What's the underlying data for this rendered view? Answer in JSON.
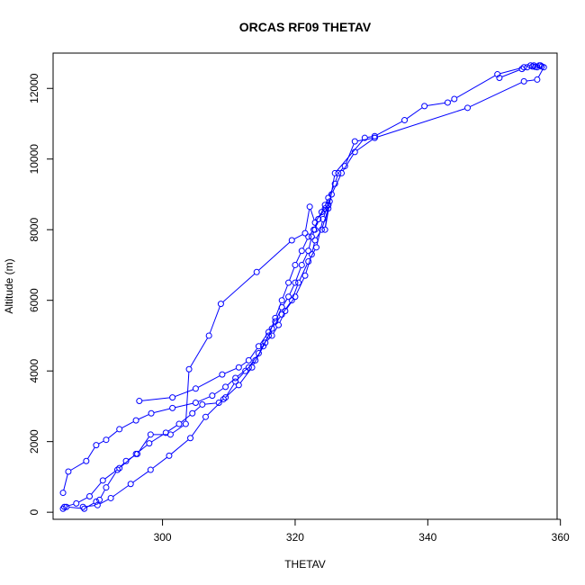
{
  "chart_data": {
    "type": "line",
    "title": "ORCAS RF09 THETAV",
    "xlabel": "THETAV",
    "ylabel": "Altitude (m)",
    "xlim": [
      283.5,
      359.5
    ],
    "ylim": [
      -200,
      13000
    ],
    "xticks": [
      300,
      320,
      340,
      360
    ],
    "yticks": [
      0,
      2000,
      4000,
      6000,
      8000,
      10000,
      12000
    ],
    "xtick_labels": [
      "300",
      "320",
      "340",
      "360"
    ],
    "ytick_labels": [
      "0",
      "2000",
      "4000",
      "6000",
      "8000",
      "10000",
      "12000"
    ],
    "grid": false,
    "series_color": "#0000ff",
    "marker": "open-circle",
    "series": [
      {
        "x": [
          285.0,
          285.8,
          288.5,
          290.0,
          291.5,
          293.5,
          296.0,
          298.3,
          301.5,
          305.0,
          307.5,
          309.5,
          311.0,
          313.0,
          314.5,
          316.0,
          317.0,
          318.0,
          319.0,
          320.0,
          321.0,
          322.0,
          322.8,
          323.5,
          324.5,
          325.0,
          325.2
        ],
        "y": [
          550,
          1150,
          1450,
          1900,
          2050,
          2350,
          2600,
          2800,
          2950,
          3100,
          3300,
          3550,
          3800,
          4100,
          4500,
          5000,
          5500,
          6000,
          6500,
          7000,
          7400,
          7800,
          8000,
          8300,
          8600,
          8700,
          8800
        ]
      },
      {
        "x": [
          296.5,
          301.5,
          305.0,
          309.0,
          311.5,
          313.0,
          314.5,
          316.0,
          317.0,
          318.0,
          319.0,
          320.0,
          321.0,
          322.0,
          322.5,
          323.0,
          323.5,
          324.5,
          325.0,
          326.0,
          326.5,
          327.5,
          329.0,
          332.0
        ],
        "y": [
          3150,
          3250,
          3500,
          3900,
          4100,
          4300,
          4700,
          5100,
          5400,
          5800,
          6100,
          6500,
          7000,
          7400,
          7800,
          8000,
          8300,
          8700,
          8900,
          9300,
          9600,
          9800,
          10500,
          10600
        ]
      },
      {
        "x": [
          285.2,
          287.0,
          289.0,
          291.0,
          293.5,
          296.0,
          298.0,
          300.5,
          302.5,
          304.5,
          306.0,
          308.5,
          309.5,
          311.0,
          312.5,
          314.0,
          315.5,
          316.5,
          317.5,
          318.5,
          320.0,
          321.5,
          322.5,
          323.0,
          324.0,
          325.0
        ],
        "y": [
          150,
          250,
          450,
          900,
          1250,
          1650,
          1950,
          2250,
          2500,
          2800,
          3050,
          3100,
          3250,
          3700,
          4000,
          4300,
          4800,
          5000,
          5300,
          5700,
          6100,
          6700,
          7300,
          7700,
          8000,
          8600
        ]
      },
      {
        "x": [
          285.0,
          285.5,
          288.2,
          290.0,
          290.5,
          291.5,
          293.2,
          294.5,
          296.2,
          298.2,
          301.2,
          303.5,
          304.0,
          307.0,
          308.8,
          314.2,
          319.5,
          321.5,
          322.2,
          323.0,
          324.0,
          325.0,
          324.5,
          326.0,
          330.5,
          332.0,
          336.5,
          339.5,
          343.0,
          344.0,
          350.5,
          354.5,
          355.5,
          356.0,
          356.5,
          357.0,
          357.2
        ],
        "y": [
          100,
          150,
          100,
          300,
          350,
          700,
          1200,
          1450,
          1650,
          2200,
          2200,
          2500,
          4050,
          5000,
          5900,
          6800,
          7700,
          7900,
          8650,
          8200,
          8500,
          8700,
          8000,
          9600,
          10600,
          10650,
          11100,
          11500,
          11600,
          11700,
          12400,
          12600,
          12650,
          12650,
          12600,
          12650,
          12620
        ]
      },
      {
        "x": [
          288.0,
          290.2,
          292.2,
          295.2,
          298.2,
          301.0,
          304.2,
          306.5,
          309.2,
          311.5,
          313.5,
          315.2,
          316.5,
          318.0,
          319.5,
          320.5,
          322.0,
          323.2,
          324.2,
          325.5,
          327.0,
          329.0,
          332.0,
          346.0,
          354.5,
          356.5,
          357.5
        ],
        "y": [
          150,
          200,
          400,
          800,
          1200,
          1600,
          2100,
          2700,
          3200,
          3600,
          4100,
          4700,
          5200,
          5600,
          6000,
          6500,
          7100,
          7500,
          8300,
          9000,
          9600,
          10200,
          10600,
          11450,
          12200,
          12250,
          12600
        ]
      },
      {
        "x": [
          350.8,
          354.2,
          355.0,
          355.8,
          356.2,
          356.8
        ],
        "y": [
          12300,
          12550,
          12600,
          12620,
          12610,
          12650
        ]
      }
    ]
  }
}
